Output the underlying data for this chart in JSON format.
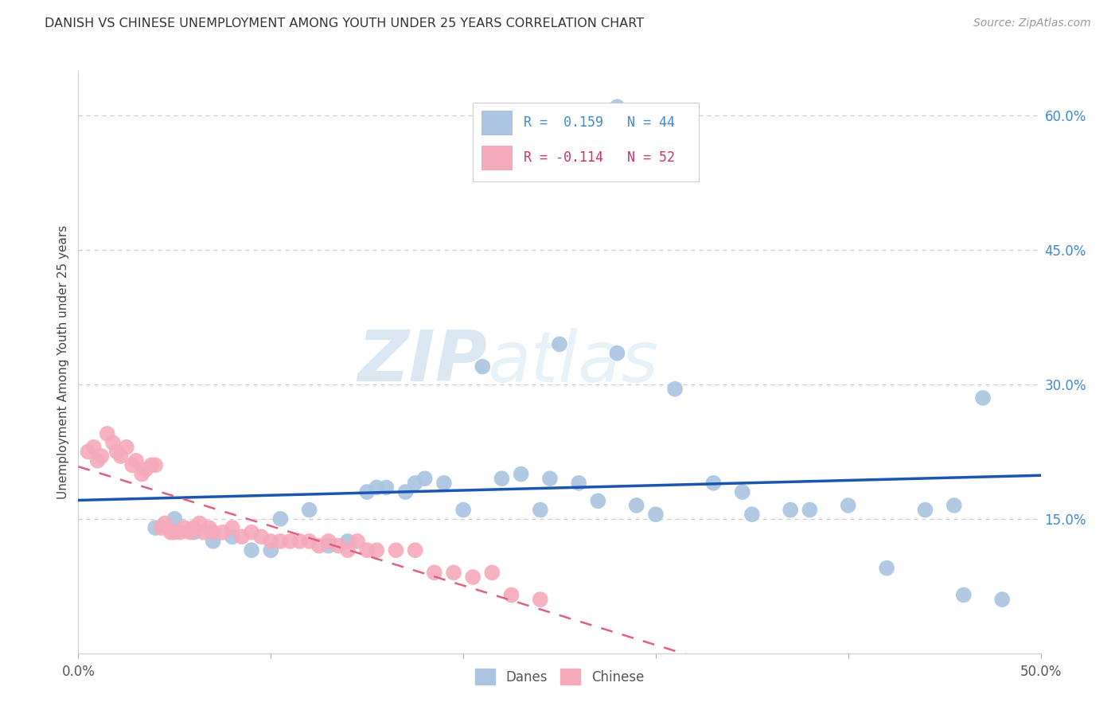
{
  "title": "DANISH VS CHINESE UNEMPLOYMENT AMONG YOUTH UNDER 25 YEARS CORRELATION CHART",
  "source": "Source: ZipAtlas.com",
  "ylabel": "Unemployment Among Youth under 25 years",
  "xlim": [
    0,
    0.5
  ],
  "ylim": [
    0,
    0.65
  ],
  "yticks_right": [
    0.15,
    0.3,
    0.45,
    0.6
  ],
  "yticklabels_right": [
    "15.0%",
    "30.0%",
    "45.0%",
    "60.0%"
  ],
  "danes_color": "#aac4e2",
  "chinese_color": "#f5aabb",
  "danes_line_color": "#1a56b0",
  "chinese_line_color": "#e06080",
  "background_color": "#ffffff",
  "grid_color": "#cccccc",
  "watermark_zip": "ZIP",
  "watermark_atlas": "atlas",
  "danes_R": 0.159,
  "danes_N": 44,
  "chinese_R": -0.114,
  "chinese_N": 52,
  "danes_x": [
    0.28,
    0.21,
    0.25,
    0.31,
    0.28,
    0.04,
    0.05,
    0.06,
    0.07,
    0.08,
    0.09,
    0.1,
    0.105,
    0.12,
    0.13,
    0.14,
    0.15,
    0.155,
    0.16,
    0.17,
    0.175,
    0.18,
    0.19,
    0.2,
    0.22,
    0.23,
    0.24,
    0.245,
    0.26,
    0.27,
    0.29,
    0.3,
    0.33,
    0.345,
    0.35,
    0.37,
    0.38,
    0.4,
    0.42,
    0.44,
    0.455,
    0.46,
    0.47,
    0.48
  ],
  "danes_y": [
    0.335,
    0.32,
    0.345,
    0.295,
    0.61,
    0.14,
    0.15,
    0.135,
    0.125,
    0.13,
    0.115,
    0.115,
    0.15,
    0.16,
    0.12,
    0.125,
    0.18,
    0.185,
    0.185,
    0.18,
    0.19,
    0.195,
    0.19,
    0.16,
    0.195,
    0.2,
    0.16,
    0.195,
    0.19,
    0.17,
    0.165,
    0.155,
    0.19,
    0.18,
    0.155,
    0.16,
    0.16,
    0.165,
    0.095,
    0.16,
    0.165,
    0.065,
    0.285,
    0.06
  ],
  "chinese_x": [
    0.005,
    0.008,
    0.01,
    0.012,
    0.015,
    0.018,
    0.02,
    0.022,
    0.025,
    0.028,
    0.03,
    0.033,
    0.035,
    0.038,
    0.04,
    0.043,
    0.045,
    0.048,
    0.05,
    0.053,
    0.055,
    0.058,
    0.06,
    0.063,
    0.065,
    0.068,
    0.07,
    0.075,
    0.08,
    0.085,
    0.09,
    0.095,
    0.1,
    0.105,
    0.11,
    0.115,
    0.12,
    0.125,
    0.13,
    0.135,
    0.14,
    0.145,
    0.15,
    0.155,
    0.165,
    0.175,
    0.185,
    0.195,
    0.205,
    0.215,
    0.225,
    0.24
  ],
  "chinese_y": [
    0.225,
    0.23,
    0.215,
    0.22,
    0.245,
    0.235,
    0.225,
    0.22,
    0.23,
    0.21,
    0.215,
    0.2,
    0.205,
    0.21,
    0.21,
    0.14,
    0.145,
    0.135,
    0.135,
    0.135,
    0.14,
    0.135,
    0.14,
    0.145,
    0.135,
    0.14,
    0.135,
    0.135,
    0.14,
    0.13,
    0.135,
    0.13,
    0.125,
    0.125,
    0.125,
    0.125,
    0.125,
    0.12,
    0.125,
    0.12,
    0.115,
    0.125,
    0.115,
    0.115,
    0.115,
    0.115,
    0.09,
    0.09,
    0.085,
    0.09,
    0.065,
    0.06
  ]
}
